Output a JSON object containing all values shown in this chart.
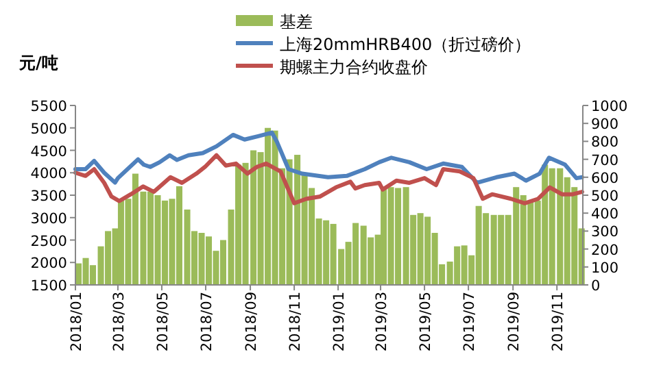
{
  "chart_data": {
    "type": "bar",
    "ylabel": "元/吨",
    "legend": "top",
    "xlim": [
      "2018-01-01",
      "2019-12-07"
    ],
    "xticks": [
      {
        "value": "2018-01-01",
        "label": "2018/01"
      },
      {
        "value": "2018-03-01",
        "label": "2018/03"
      },
      {
        "value": "2018-05-01",
        "label": "2018/05"
      },
      {
        "value": "2018-07-01",
        "label": "2018/07"
      },
      {
        "value": "2018-09-01",
        "label": "2018/09"
      },
      {
        "value": "2018-11-01",
        "label": "2018/11"
      },
      {
        "value": "2019-01-01",
        "label": "2019/01"
      },
      {
        "value": "2019-03-01",
        "label": "2019/03"
      },
      {
        "value": "2019-05-01",
        "label": "2019/05"
      },
      {
        "value": "2019-07-01",
        "label": "2019/07"
      },
      {
        "value": "2019-09-01",
        "label": "2019/09"
      },
      {
        "value": "2019-11-01",
        "label": "2019/11"
      }
    ],
    "ylim": [
      1500,
      5500
    ],
    "yticks": [
      1500,
      2000,
      2500,
      3000,
      3500,
      4000,
      4500,
      5000,
      5500
    ],
    "y2lim": [
      0,
      1000
    ],
    "y2ticks": [
      0,
      100,
      200,
      300,
      400,
      500,
      600,
      700,
      800,
      900,
      1000
    ],
    "series": [
      {
        "name": "基差",
        "axis": "y2",
        "color": "#9bbb59",
        "x": [
          "2018-01-01",
          "2018-01-11",
          "2018-01-21",
          "2018-02-01",
          "2018-02-11",
          "2018-02-21",
          "2018-03-01",
          "2018-03-11",
          "2018-03-21",
          "2018-04-01",
          "2018-04-11",
          "2018-04-21",
          "2018-05-01",
          "2018-05-11",
          "2018-05-21",
          "2018-06-01",
          "2018-06-11",
          "2018-06-21",
          "2018-07-01",
          "2018-07-11",
          "2018-07-21",
          "2018-08-01",
          "2018-08-11",
          "2018-08-21",
          "2018-09-01",
          "2018-09-11",
          "2018-09-21",
          "2018-10-01",
          "2018-10-11",
          "2018-10-21",
          "2018-11-01",
          "2018-11-11",
          "2018-11-21",
          "2018-12-01",
          "2018-12-11",
          "2018-12-21",
          "2019-01-01",
          "2019-01-11",
          "2019-01-21",
          "2019-02-01",
          "2019-02-11",
          "2019-02-21",
          "2019-03-01",
          "2019-03-11",
          "2019-03-21",
          "2019-04-01",
          "2019-04-11",
          "2019-04-21",
          "2019-05-01",
          "2019-05-11",
          "2019-05-21",
          "2019-06-01",
          "2019-06-11",
          "2019-06-21",
          "2019-07-01",
          "2019-07-11",
          "2019-07-21",
          "2019-08-01",
          "2019-08-11",
          "2019-08-21",
          "2019-09-01",
          "2019-09-11",
          "2019-09-21",
          "2019-10-01",
          "2019-10-11",
          "2019-10-21",
          "2019-11-01",
          "2019-11-11",
          "2019-11-21",
          "2019-12-01"
        ],
        "values": [
          120,
          150,
          110,
          215,
          300,
          315,
          470,
          480,
          620,
          520,
          520,
          500,
          470,
          480,
          550,
          420,
          300,
          290,
          270,
          190,
          250,
          420,
          670,
          680,
          750,
          740,
          875,
          860,
          650,
          700,
          725,
          620,
          540,
          370,
          360,
          340,
          200,
          240,
          345,
          330,
          265,
          280,
          545,
          545,
          540,
          545,
          390,
          400,
          380,
          290,
          115,
          130,
          215,
          220,
          165,
          440,
          400,
          390,
          390,
          390,
          545,
          500,
          465,
          470,
          670,
          650,
          650,
          600,
          545,
          315
        ]
      },
      {
        "name": "上海20mmHRB400（折过磅价）",
        "type": "line",
        "color": "#4f81bd",
        "x": [
          "2018-01-01",
          "2018-01-15",
          "2018-01-27",
          "2018-02-10",
          "2018-02-25",
          "2018-03-01",
          "2018-03-29",
          "2018-04-06",
          "2018-04-15",
          "2018-04-28",
          "2018-05-12",
          "2018-05-22",
          "2018-06-07",
          "2018-06-27",
          "2018-07-16",
          "2018-08-08",
          "2018-08-24",
          "2018-09-12",
          "2018-10-01",
          "2018-10-08",
          "2018-10-24",
          "2018-11-12",
          "2018-12-18",
          "2019-01-13",
          "2019-02-07",
          "2019-02-27",
          "2019-03-16",
          "2019-04-10",
          "2019-05-04",
          "2019-05-27",
          "2019-06-22",
          "2019-07-13",
          "2019-08-09",
          "2019-09-03",
          "2019-09-19",
          "2019-10-08",
          "2019-10-21",
          "2019-11-12",
          "2019-11-28",
          "2019-12-06"
        ],
        "values": [
          4080,
          4080,
          4265,
          4000,
          3780,
          3880,
          4300,
          4180,
          4130,
          4235,
          4390,
          4285,
          4390,
          4440,
          4590,
          4845,
          4740,
          4815,
          4895,
          4690,
          4080,
          3980,
          3900,
          3930,
          4080,
          4235,
          4335,
          4235,
          4080,
          4205,
          4130,
          3775,
          3900,
          3980,
          3825,
          3980,
          4335,
          4185,
          3880,
          3900
        ]
      },
      {
        "name": "期螺主力合约收盘价",
        "type": "line",
        "color": "#c0504d",
        "x": [
          "2018-01-01",
          "2018-01-15",
          "2018-01-27",
          "2018-02-10",
          "2018-02-20",
          "2018-03-03",
          "2018-03-19",
          "2018-04-05",
          "2018-04-20",
          "2018-05-13",
          "2018-05-29",
          "2018-06-18",
          "2018-06-30",
          "2018-07-16",
          "2018-07-29",
          "2018-08-12",
          "2018-08-28",
          "2018-09-10",
          "2018-09-23",
          "2018-10-13",
          "2018-11-01",
          "2018-11-18",
          "2018-12-07",
          "2018-12-29",
          "2019-01-18",
          "2019-01-25",
          "2019-02-07",
          "2019-02-27",
          "2019-03-04",
          "2019-03-23",
          "2019-04-10",
          "2019-05-01",
          "2019-05-17",
          "2019-05-27",
          "2019-06-19",
          "2019-07-08",
          "2019-07-21",
          "2019-08-03",
          "2019-08-29",
          "2019-09-17",
          "2019-10-06",
          "2019-10-22",
          "2019-11-08",
          "2019-11-23",
          "2019-12-06"
        ],
        "values": [
          4000,
          3930,
          4080,
          3775,
          3470,
          3370,
          3520,
          3695,
          3575,
          3900,
          3775,
          3980,
          4130,
          4390,
          4160,
          4205,
          3980,
          4130,
          4205,
          4030,
          3320,
          3420,
          3470,
          3675,
          3800,
          3650,
          3725,
          3775,
          3625,
          3825,
          3775,
          3880,
          3725,
          4080,
          4030,
          3880,
          3420,
          3520,
          3420,
          3320,
          3420,
          3675,
          3520,
          3520,
          3575
        ]
      }
    ]
  }
}
